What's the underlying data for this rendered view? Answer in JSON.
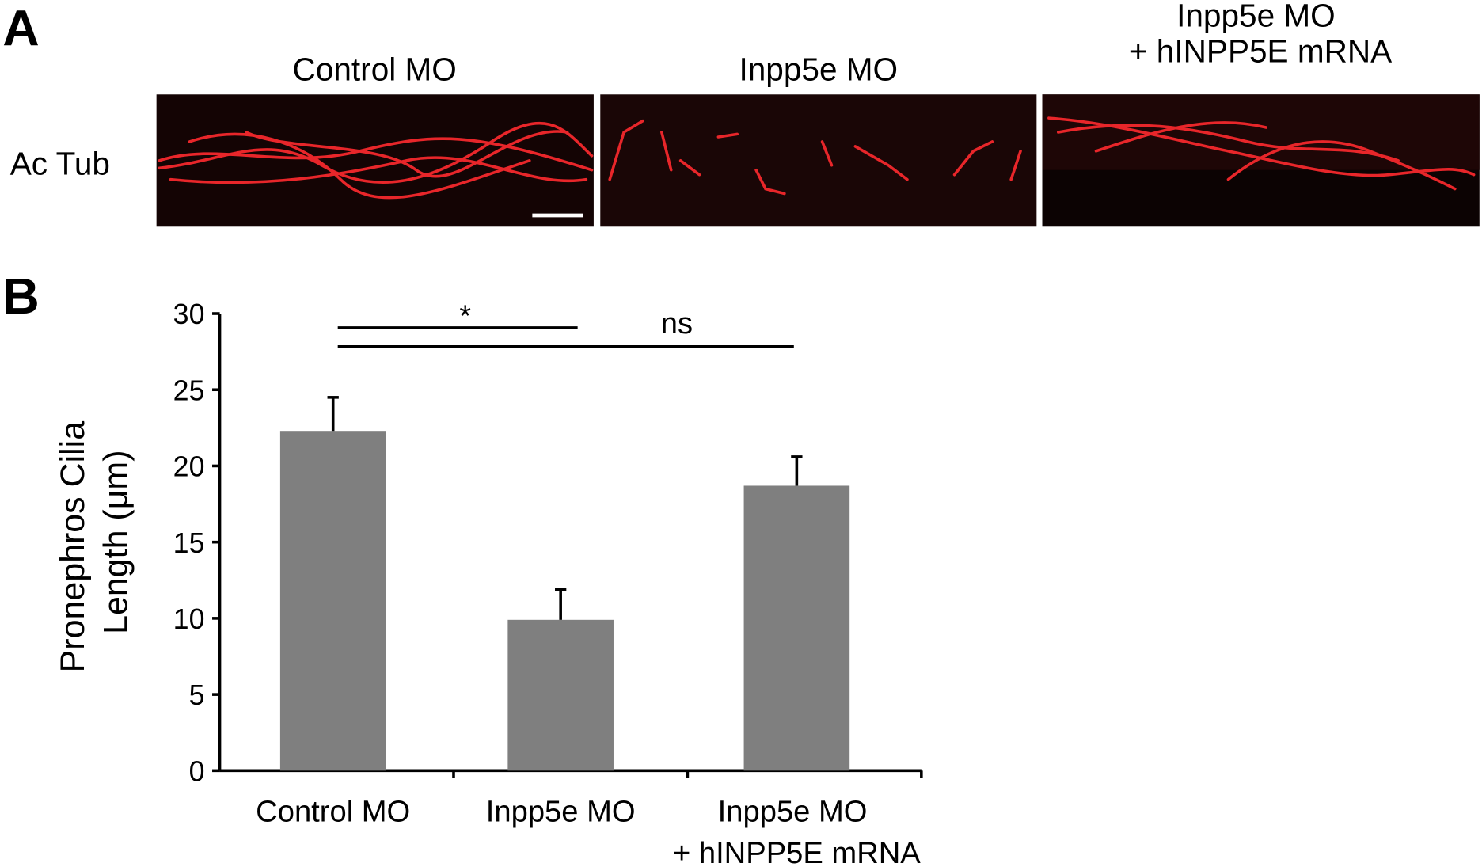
{
  "panel_a": {
    "label": "A",
    "column_titles": [
      "Control MO",
      "Inpp5e MO",
      "Inpp5e MO + hINPP5E mRNA"
    ],
    "row_label": "Ac Tub"
  },
  "panel_b": {
    "label": "B"
  },
  "chart_data": {
    "type": "bar",
    "ylabel": "Pronephros Cilia Length (μm)",
    "categories": [
      "Control MO",
      "Inpp5e MO",
      "Inpp5e MO + hINPP5E mRNA"
    ],
    "values": [
      22.3,
      9.9,
      18.7
    ],
    "errors": [
      2.2,
      2.0,
      1.9
    ],
    "color": "#7f7f7f",
    "ylim": [
      0,
      30
    ],
    "yticks": [
      0,
      5,
      10,
      15,
      20,
      25,
      30
    ],
    "annotations": [
      "*",
      "ns"
    ]
  }
}
